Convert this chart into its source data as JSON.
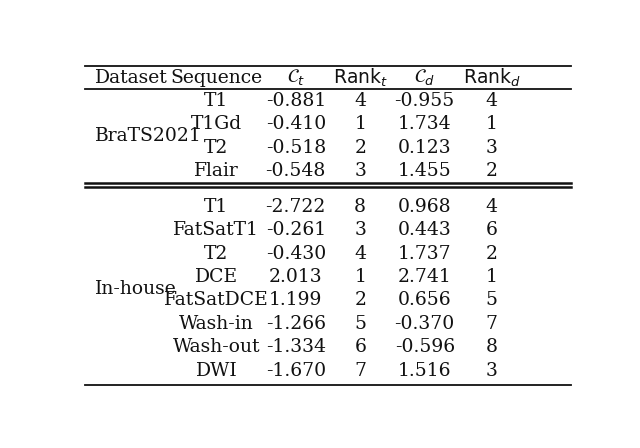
{
  "brats_rows": [
    [
      "T1",
      "-0.881",
      "4",
      "-0.955",
      "4"
    ],
    [
      "T1Gd",
      "-0.410",
      "1",
      "1.734",
      "1"
    ],
    [
      "T2",
      "-0.518",
      "2",
      "0.123",
      "3"
    ],
    [
      "Flair",
      "-0.548",
      "3",
      "1.455",
      "2"
    ]
  ],
  "inhouse_rows": [
    [
      "T1",
      "-2.722",
      "8",
      "0.968",
      "4"
    ],
    [
      "FatSatT1",
      "-0.261",
      "3",
      "0.443",
      "6"
    ],
    [
      "T2",
      "-0.430",
      "4",
      "1.737",
      "2"
    ],
    [
      "DCE",
      "2.013",
      "1",
      "2.741",
      "1"
    ],
    [
      "FatSatDCE",
      "1.199",
      "2",
      "0.656",
      "5"
    ],
    [
      "Wash-in",
      "-1.266",
      "5",
      "-0.370",
      "7"
    ],
    [
      "Wash-out",
      "-1.334",
      "6",
      "-0.596",
      "8"
    ],
    [
      "DWI",
      "-1.670",
      "7",
      "1.516",
      "3"
    ]
  ],
  "font_size": 13.5,
  "bg_color": "#ffffff",
  "text_color": "#111111",
  "line_color": "#111111"
}
